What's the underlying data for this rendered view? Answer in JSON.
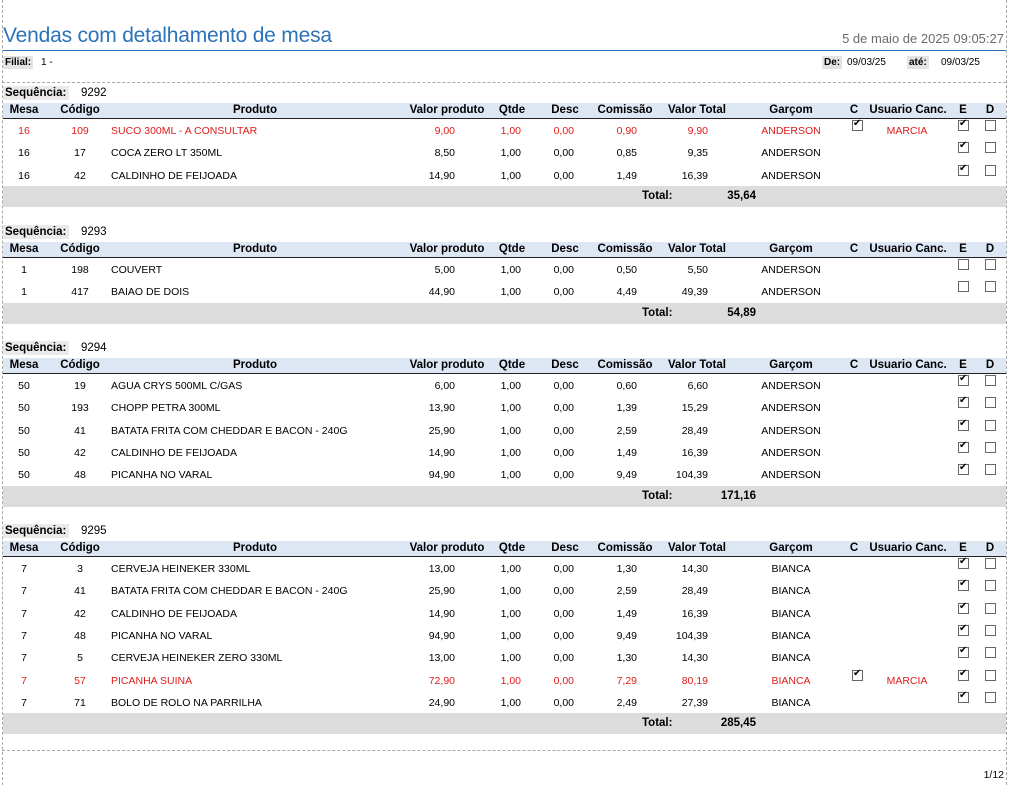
{
  "report": {
    "title": "Vendas com detalhamento de mesa",
    "timestamp": "5 de maio de 2025 09:05:27",
    "filial_label": "Filial:",
    "filial_value": "1 -",
    "de_label": "De:",
    "de_value": "09/03/25",
    "ate_label": "até:",
    "ate_value": "09/03/25",
    "page": "1/12"
  },
  "columns": [
    "Mesa",
    "Código",
    "Produto",
    "Valor produto",
    "Qtde",
    "Desc",
    "Comissão",
    "Valor Total",
    "Garçom",
    "C",
    "Usuario Canc.",
    "E",
    "D"
  ],
  "sequence_label": "Sequência:",
  "total_label": "Total:",
  "sections": [
    {
      "seq": "9292",
      "total": "35,64",
      "rows": [
        {
          "mesa": "16",
          "codigo": "109",
          "produto": "SUCO 300ML - A CONSULTAR",
          "valor": "9,00",
          "qtde": "1,00",
          "desc": "0,00",
          "comissao": "0,90",
          "total": "9,90",
          "garcom": "ANDERSON",
          "c": true,
          "usuario": "MARCIA",
          "e": true,
          "d": false,
          "red": true
        },
        {
          "mesa": "16",
          "codigo": "17",
          "produto": "COCA ZERO LT 350ML",
          "valor": "8,50",
          "qtde": "1,00",
          "desc": "0,00",
          "comissao": "0,85",
          "total": "9,35",
          "garcom": "ANDERSON",
          "c": false,
          "usuario": "",
          "e": true,
          "d": false,
          "red": false
        },
        {
          "mesa": "16",
          "codigo": "42",
          "produto": "CALDINHO DE FEIJOADA",
          "valor": "14,90",
          "qtde": "1,00",
          "desc": "0,00",
          "comissao": "1,49",
          "total": "16,39",
          "garcom": "ANDERSON",
          "c": false,
          "usuario": "",
          "e": true,
          "d": false,
          "red": false
        }
      ]
    },
    {
      "seq": "9293",
      "total": "54,89",
      "rows": [
        {
          "mesa": "1",
          "codigo": "198",
          "produto": "COUVERT",
          "valor": "5,00",
          "qtde": "1,00",
          "desc": "0,00",
          "comissao": "0,50",
          "total": "5,50",
          "garcom": "ANDERSON",
          "c": false,
          "usuario": "",
          "e": false,
          "d": false,
          "red": false
        },
        {
          "mesa": "1",
          "codigo": "417",
          "produto": "BAIAO DE DOIS",
          "valor": "44,90",
          "qtde": "1,00",
          "desc": "0,00",
          "comissao": "4,49",
          "total": "49,39",
          "garcom": "ANDERSON",
          "c": false,
          "usuario": "",
          "e": false,
          "d": false,
          "red": false
        }
      ]
    },
    {
      "seq": "9294",
      "total": "171,16",
      "rows": [
        {
          "mesa": "50",
          "codigo": "19",
          "produto": "AGUA CRYS 500ML C/GAS",
          "valor": "6,00",
          "qtde": "1,00",
          "desc": "0,00",
          "comissao": "0,60",
          "total": "6,60",
          "garcom": "ANDERSON",
          "c": false,
          "usuario": "",
          "e": true,
          "d": false,
          "red": false
        },
        {
          "mesa": "50",
          "codigo": "193",
          "produto": "CHOPP PETRA 300ML",
          "valor": "13,90",
          "qtde": "1,00",
          "desc": "0,00",
          "comissao": "1,39",
          "total": "15,29",
          "garcom": "ANDERSON",
          "c": false,
          "usuario": "",
          "e": true,
          "d": false,
          "red": false
        },
        {
          "mesa": "50",
          "codigo": "41",
          "produto": "BATATA FRITA COM CHEDDAR E BACON - 240G",
          "valor": "25,90",
          "qtde": "1,00",
          "desc": "0,00",
          "comissao": "2,59",
          "total": "28,49",
          "garcom": "ANDERSON",
          "c": false,
          "usuario": "",
          "e": true,
          "d": false,
          "red": false
        },
        {
          "mesa": "50",
          "codigo": "42",
          "produto": "CALDINHO DE FEIJOADA",
          "valor": "14,90",
          "qtde": "1,00",
          "desc": "0,00",
          "comissao": "1,49",
          "total": "16,39",
          "garcom": "ANDERSON",
          "c": false,
          "usuario": "",
          "e": true,
          "d": false,
          "red": false
        },
        {
          "mesa": "50",
          "codigo": "48",
          "produto": "PICANHA NO VARAL",
          "valor": "94,90",
          "qtde": "1,00",
          "desc": "0,00",
          "comissao": "9,49",
          "total": "104,39",
          "garcom": "ANDERSON",
          "c": false,
          "usuario": "",
          "e": true,
          "d": false,
          "red": false
        }
      ]
    },
    {
      "seq": "9295",
      "total": "285,45",
      "rows": [
        {
          "mesa": "7",
          "codigo": "3",
          "produto": "CERVEJA HEINEKER 330ML",
          "valor": "13,00",
          "qtde": "1,00",
          "desc": "0,00",
          "comissao": "1,30",
          "total": "14,30",
          "garcom": "BIANCA",
          "c": false,
          "usuario": "",
          "e": true,
          "d": false,
          "red": false
        },
        {
          "mesa": "7",
          "codigo": "41",
          "produto": "BATATA FRITA COM CHEDDAR E BACON - 240G",
          "valor": "25,90",
          "qtde": "1,00",
          "desc": "0,00",
          "comissao": "2,59",
          "total": "28,49",
          "garcom": "BIANCA",
          "c": false,
          "usuario": "",
          "e": true,
          "d": false,
          "red": false
        },
        {
          "mesa": "7",
          "codigo": "42",
          "produto": "CALDINHO DE FEIJOADA",
          "valor": "14,90",
          "qtde": "1,00",
          "desc": "0,00",
          "comissao": "1,49",
          "total": "16,39",
          "garcom": "BIANCA",
          "c": false,
          "usuario": "",
          "e": true,
          "d": false,
          "red": false
        },
        {
          "mesa": "7",
          "codigo": "48",
          "produto": "PICANHA NO VARAL",
          "valor": "94,90",
          "qtde": "1,00",
          "desc": "0,00",
          "comissao": "9,49",
          "total": "104,39",
          "garcom": "BIANCA",
          "c": false,
          "usuario": "",
          "e": true,
          "d": false,
          "red": false
        },
        {
          "mesa": "7",
          "codigo": "5",
          "produto": "CERVEJA HEINEKER ZERO 330ML",
          "valor": "13,00",
          "qtde": "1,00",
          "desc": "0,00",
          "comissao": "1,30",
          "total": "14,30",
          "garcom": "BIANCA",
          "c": false,
          "usuario": "",
          "e": true,
          "d": false,
          "red": false
        },
        {
          "mesa": "7",
          "codigo": "57",
          "produto": "PICANHA SUINA",
          "valor": "72,90",
          "qtde": "1,00",
          "desc": "0,00",
          "comissao": "7,29",
          "total": "80,19",
          "garcom": "BIANCA",
          "c": true,
          "usuario": "MARCIA",
          "e": true,
          "d": false,
          "red": true
        },
        {
          "mesa": "7",
          "codigo": "71",
          "produto": "BOLO DE ROLO NA PARRILHA",
          "valor": "24,90",
          "qtde": "1,00",
          "desc": "0,00",
          "comissao": "2,49",
          "total": "27,39",
          "garcom": "BIANCA",
          "c": false,
          "usuario": "",
          "e": true,
          "d": false,
          "red": false
        }
      ]
    }
  ],
  "colors": {
    "title": "#2c73b9",
    "header_bg": "#dde6f3",
    "total_bg": "#dcdcdc",
    "cancelled": "#e01b1b"
  }
}
